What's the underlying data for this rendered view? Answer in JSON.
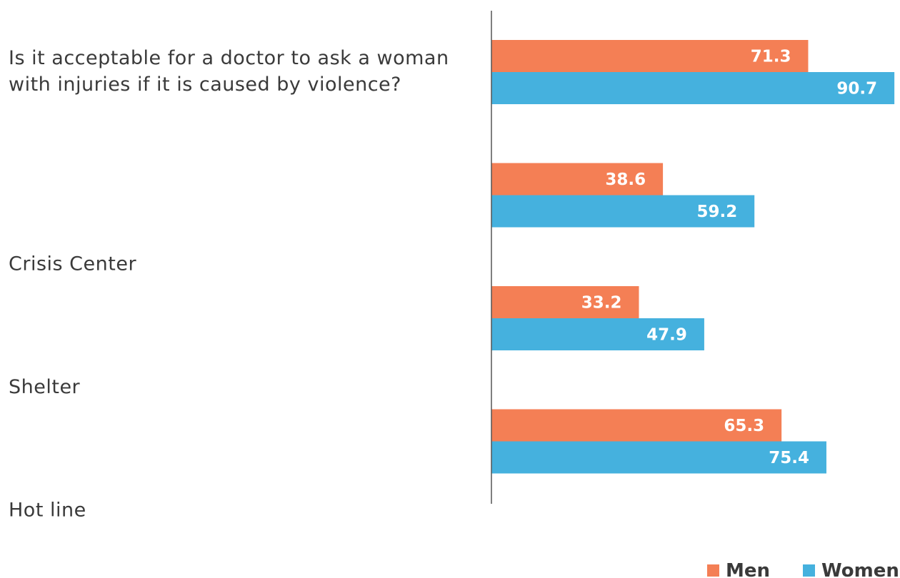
{
  "chart_data": {
    "type": "bar",
    "orientation": "horizontal",
    "categories": [
      [
        "Is it acceptable for a doctor to ask a woman",
        "with injuries if it is caused by violence?"
      ],
      [
        "Crisis Center"
      ],
      [
        "Shelter"
      ],
      [
        "Hot line"
      ]
    ],
    "series": [
      {
        "name": "Men",
        "color": "#f47f55",
        "values": [
          71.3,
          38.6,
          33.2,
          65.3
        ]
      },
      {
        "name": "Women",
        "color": "#45b1de",
        "values": [
          90.7,
          59.2,
          47.9,
          75.4
        ]
      }
    ],
    "xlim": [
      0,
      91
    ],
    "grid": false,
    "legend": "bottom-right",
    "axis_color": "#555555"
  }
}
